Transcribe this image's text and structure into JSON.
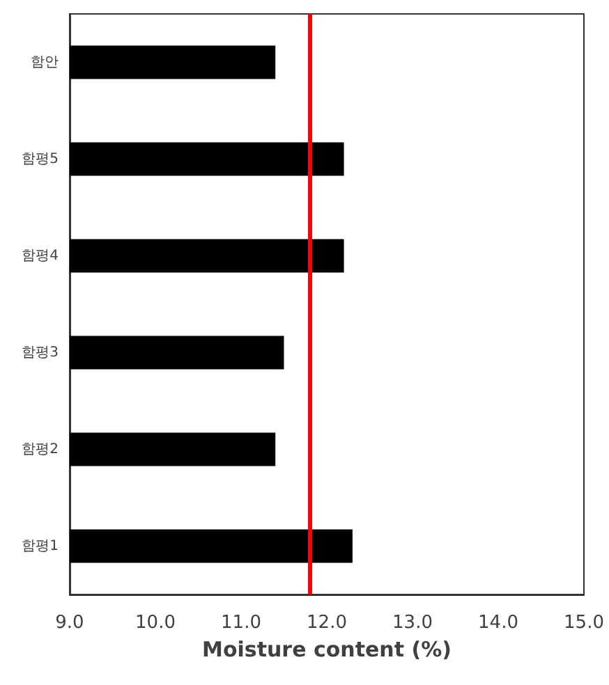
{
  "chart_data": {
    "type": "bar",
    "orientation": "horizontal",
    "xlabel": "Moisture content (%)",
    "categories": [
      "함안",
      "함평5",
      "함평4",
      "함평3",
      "함평2",
      "함평1"
    ],
    "values": [
      11.4,
      12.2,
      12.2,
      11.5,
      11.4,
      12.3
    ],
    "color": "#000000",
    "xlim": [
      9,
      15
    ],
    "xticks": [
      {
        "value": 9,
        "label": "9.0"
      },
      {
        "value": 10,
        "label": "10.0"
      },
      {
        "value": 11,
        "label": "11.0"
      },
      {
        "value": 12,
        "label": "12.0"
      },
      {
        "value": 13,
        "label": "13.0"
      },
      {
        "value": 14,
        "label": "14.0"
      },
      {
        "value": 15,
        "label": "15.0"
      }
    ],
    "ref_lines": [
      {
        "axis": "x",
        "value": 11.8,
        "color": "#ff0000"
      }
    ],
    "grid": false
  }
}
